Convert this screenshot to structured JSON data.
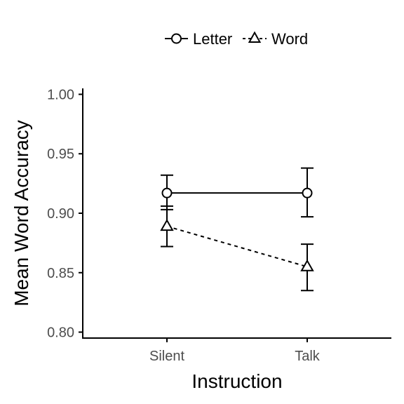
{
  "chart_data": {
    "type": "line",
    "categories": [
      "Silent",
      "Talk"
    ],
    "xlabel": "Instruction",
    "ylabel": "Mean Word Accuracy",
    "ylim": [
      0.795,
      1.005
    ],
    "yticks": [
      0.8,
      0.85,
      0.9,
      0.95,
      1.0
    ],
    "ytick_labels": [
      "0.80",
      "0.85",
      "0.90",
      "0.95",
      "1.00"
    ],
    "grid": false,
    "legend_position": "top",
    "series": [
      {
        "name": "Letter",
        "marker": "circle",
        "line": "solid",
        "values": [
          0.917,
          0.917
        ],
        "error_low": [
          0.903,
          0.897
        ],
        "error_high": [
          0.932,
          0.938
        ]
      },
      {
        "name": "Word",
        "marker": "triangle",
        "line": "dashed",
        "values": [
          0.889,
          0.855
        ],
        "error_low": [
          0.872,
          0.835
        ],
        "error_high": [
          0.906,
          0.874
        ]
      }
    ]
  }
}
